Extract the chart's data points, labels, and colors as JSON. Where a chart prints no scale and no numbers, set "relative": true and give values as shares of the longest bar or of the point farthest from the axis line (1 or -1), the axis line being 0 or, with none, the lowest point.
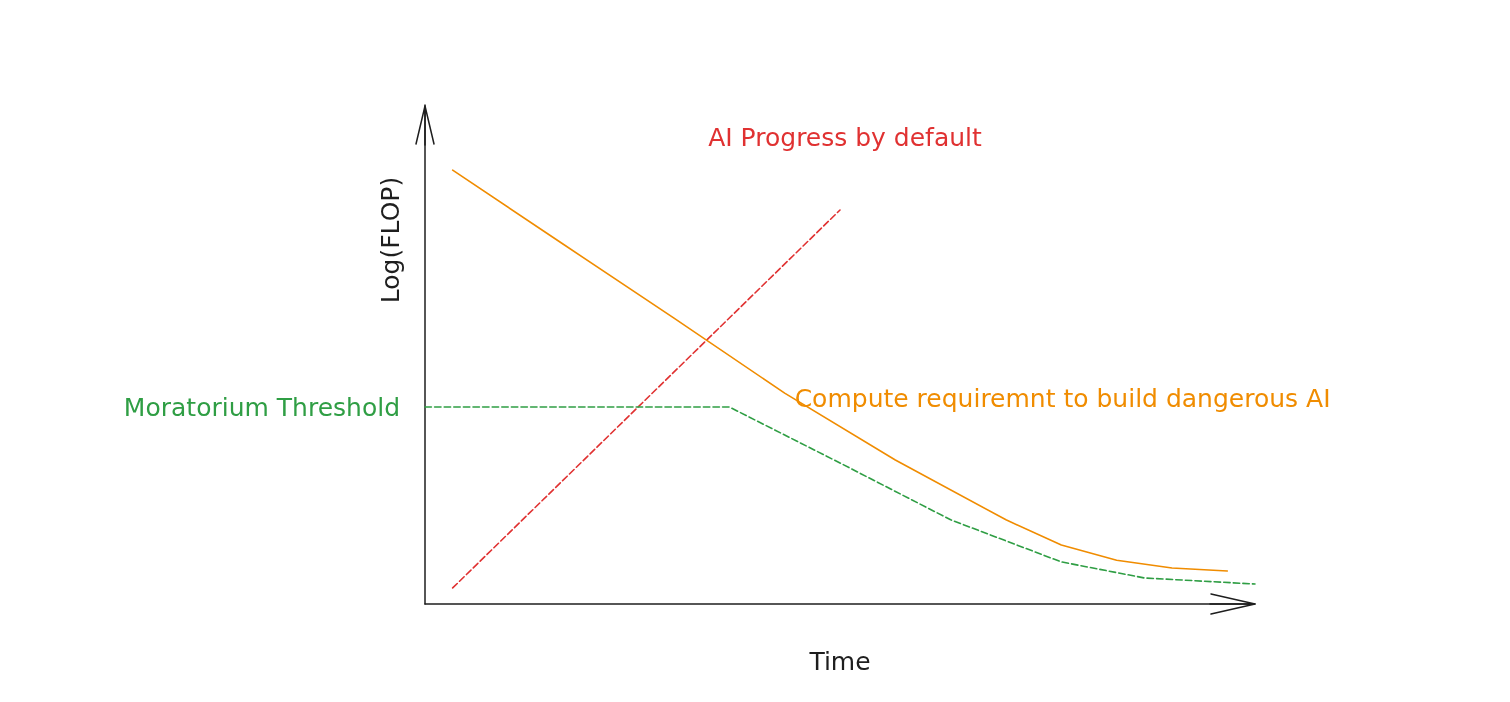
{
  "chart_data": {
    "type": "line",
    "relative": true,
    "xlabel": "Time",
    "ylabel": "Log(FLOP)",
    "tick_labels": false,
    "grid": false,
    "legend": false,
    "marker": "none",
    "categories": [
      null,
      null,
      null,
      null,
      null,
      null,
      null,
      null,
      null,
      null,
      null,
      null,
      null,
      null,
      null,
      null,
      null,
      null,
      null,
      null,
      null,
      null,
      null,
      null,
      null,
      null,
      null,
      null,
      null,
      null,
      null
    ],
    "series": [
      {
        "name": "AI Progress by default",
        "color": "#e03131",
        "line_style": "dashed",
        "values": [
          null,
          0.037,
          null,
          null,
          null,
          null,
          null,
          null,
          null,
          null,
          null,
          null,
          null,
          null,
          null,
          0.908,
          null,
          null,
          null,
          null,
          null,
          null,
          null,
          null,
          null,
          null,
          null,
          null,
          null,
          null,
          null
        ]
      },
      {
        "name": "Compute requiremnt to build dangerous AI",
        "color": "#f08c00",
        "line_style": "solid",
        "values": [
          null,
          1.0,
          null,
          null,
          null,
          0.829,
          null,
          null,
          null,
          0.659,
          null,
          null,
          null,
          0.486,
          null,
          null,
          null,
          0.332,
          null,
          null,
          null,
          0.194,
          null,
          0.136,
          null,
          0.101,
          null,
          0.083,
          null,
          0.076,
          null
        ]
      },
      {
        "name": "Moratorium Threshold",
        "color": "#2f9e44",
        "line_style": "dashed",
        "values": [
          0.454,
          null,
          null,
          null,
          null,
          null,
          null,
          null,
          null,
          null,
          null,
          0.454,
          null,
          null,
          null,
          0.325,
          null,
          null,
          null,
          0.194,
          null,
          null,
          null,
          0.097,
          null,
          null,
          0.06,
          null,
          null,
          null,
          0.046
        ]
      }
    ]
  }
}
